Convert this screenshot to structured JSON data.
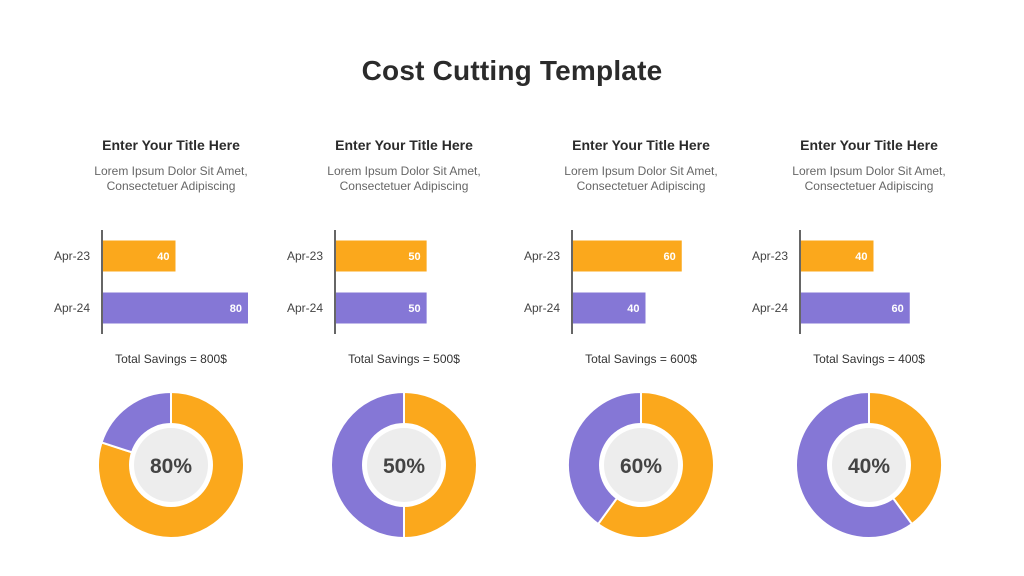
{
  "title": "Cost Cutting Template",
  "colors": {
    "orange": "#FBA81C",
    "purple": "#8577D6",
    "axis": "#333333",
    "inner_fill": "#EDEDED"
  },
  "panels": [
    {
      "title": "Enter Your Title Here",
      "subtitle": [
        "Lorem Ipsum Dolor Sit Amet,",
        "Consectetuer Adipiscing"
      ],
      "savings": "Total Savings = 800$"
    },
    {
      "title": "Enter Your Title Here",
      "subtitle": [
        "Lorem Ipsum Dolor Sit Amet,",
        "Consectetuer Adipiscing"
      ],
      "savings": "Total Savings = 500$"
    },
    {
      "title": "Enter Your Title Here",
      "subtitle": [
        "Lorem Ipsum Dolor Sit Amet,",
        "Consectetuer Adipiscing"
      ],
      "savings": "Total Savings = 600$"
    },
    {
      "title": "Enter Your Title Here",
      "subtitle": [
        "Lorem Ipsum Dolor Sit Amet,",
        "Consectetuer Adipiscing"
      ],
      "savings": "Total Savings = 400$"
    }
  ],
  "chart_data": [
    {
      "type": "bar",
      "orientation": "horizontal",
      "categories": [
        "Apr-23",
        "Apr-24"
      ],
      "values": [
        40,
        80
      ],
      "xlim": [
        0,
        80
      ]
    },
    {
      "type": "bar",
      "orientation": "horizontal",
      "categories": [
        "Apr-23",
        "Apr-24"
      ],
      "values": [
        50,
        50
      ],
      "xlim": [
        0,
        80
      ]
    },
    {
      "type": "bar",
      "orientation": "horizontal",
      "categories": [
        "Apr-23",
        "Apr-24"
      ],
      "values": [
        60,
        40
      ],
      "xlim": [
        0,
        80
      ]
    },
    {
      "type": "bar",
      "orientation": "horizontal",
      "categories": [
        "Apr-23",
        "Apr-24"
      ],
      "values": [
        40,
        60
      ],
      "xlim": [
        0,
        80
      ]
    },
    {
      "type": "pie",
      "style": "donut",
      "slices": [
        80,
        20
      ],
      "label": "80%"
    },
    {
      "type": "pie",
      "style": "donut",
      "slices": [
        50,
        50
      ],
      "label": "50%"
    },
    {
      "type": "pie",
      "style": "donut",
      "slices": [
        60,
        40
      ],
      "label": "60%"
    },
    {
      "type": "pie",
      "style": "donut",
      "slices": [
        40,
        60
      ],
      "label": "40%"
    }
  ]
}
